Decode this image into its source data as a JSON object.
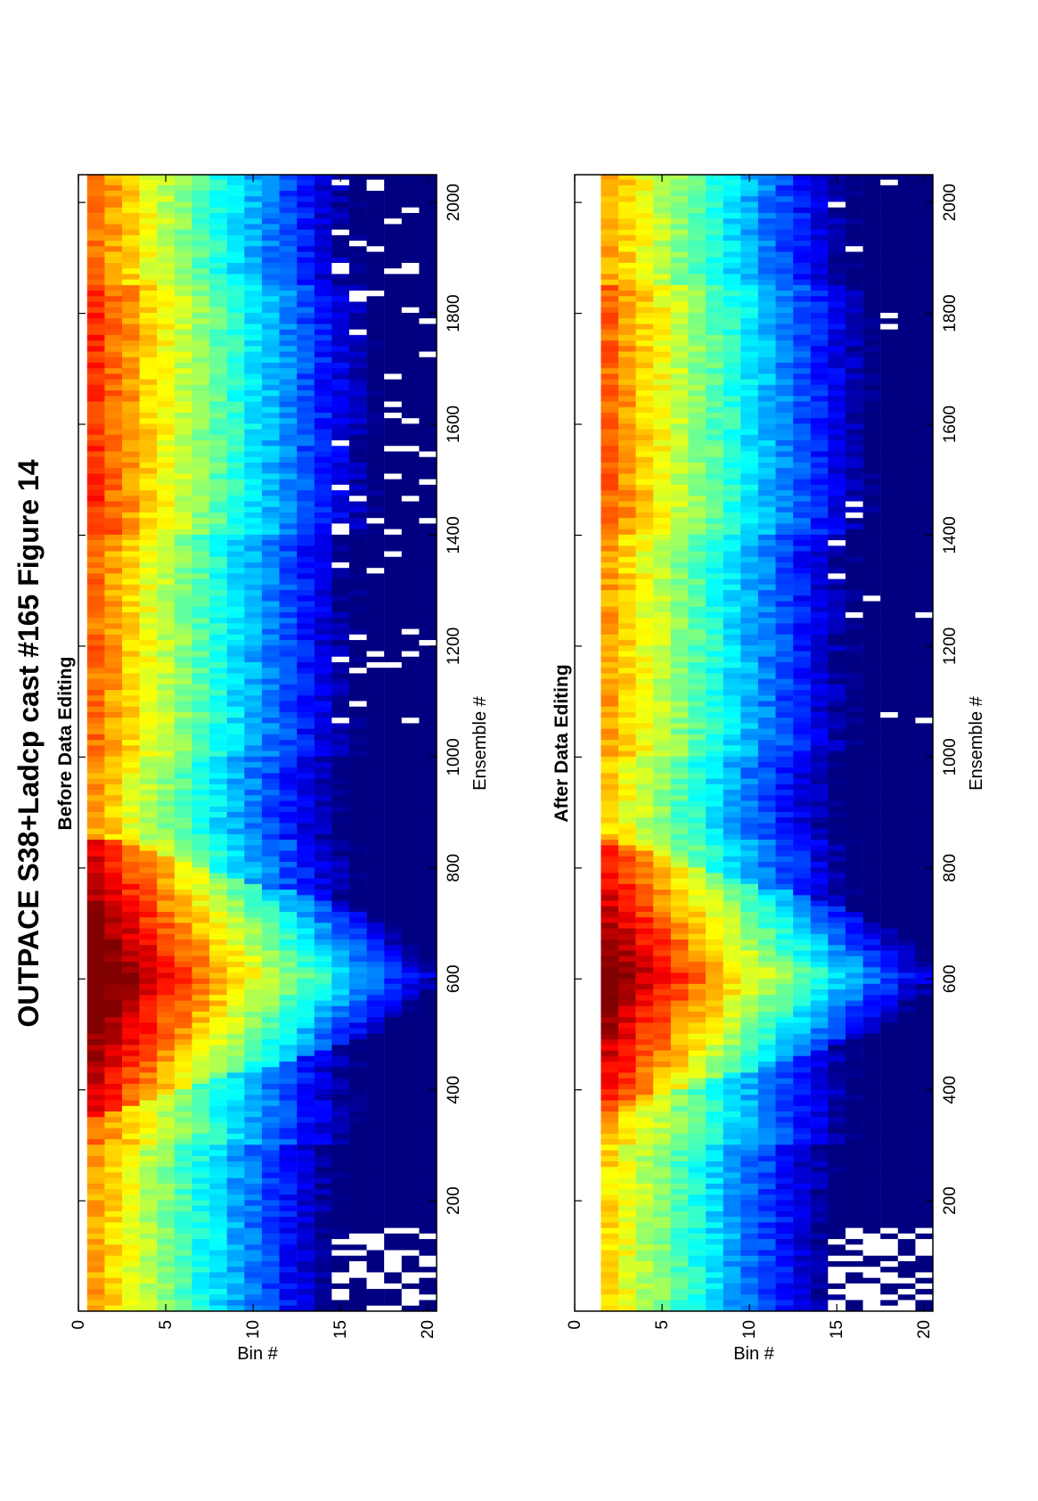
{
  "title": "OUTPACE S38+Ladcp cast #165  Figure 14",
  "chart_data": [
    {
      "type": "heatmap",
      "title": "Before Data Editing",
      "xlabel": "Ensemble #",
      "ylabel": "Bin #",
      "xlim": [
        1,
        2050
      ],
      "ylim": [
        0,
        20.5
      ],
      "xticks": [
        200,
        400,
        600,
        800,
        1000,
        1200,
        1400,
        1600,
        1800,
        2000
      ],
      "yticks": [
        0,
        5,
        10,
        15,
        20
      ],
      "bins": 20,
      "colormap": "jet",
      "description_values": "echo intensity rows by bin; strongest near bins 1-3, decaying with bin number; V-shaped high-intensity wedge between ensembles ~300 and ~750",
      "dropouts": "white gaps at bins 15-20 near ensembles 1-150 and 1050-2050"
    },
    {
      "type": "heatmap",
      "title": "After Data Editing",
      "xlabel": "Ensemble #",
      "ylabel": "Bin #",
      "xlim": [
        1,
        2050
      ],
      "ylim": [
        0,
        20.5
      ],
      "xticks": [
        200,
        400,
        600,
        800,
        1000,
        1200,
        1400,
        1600,
        1800,
        2000
      ],
      "yticks": [
        0,
        5,
        10,
        15,
        20
      ],
      "bins": 20,
      "first_valid_bin": 2,
      "colormap": "jet",
      "dropouts": "bin 1 removed; sparse white gaps at bins 15-20"
    }
  ]
}
